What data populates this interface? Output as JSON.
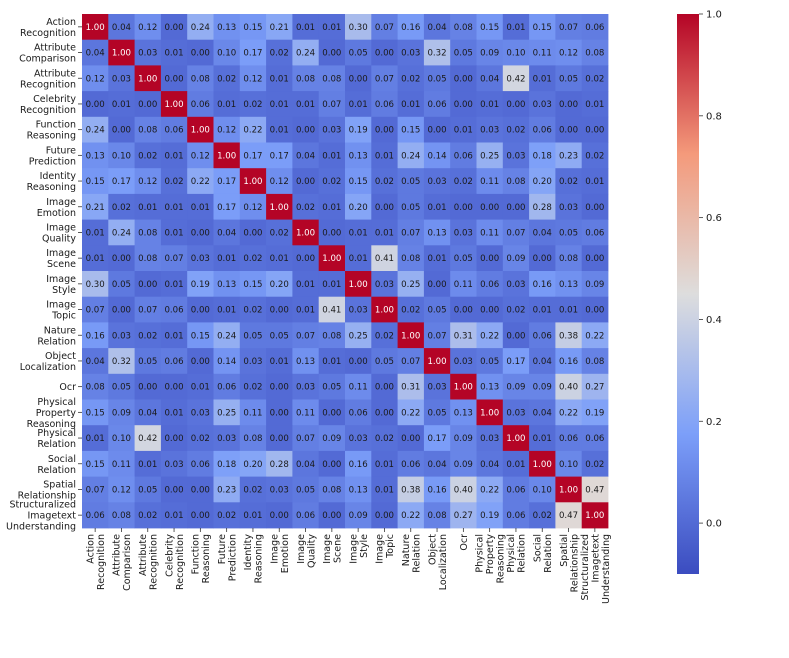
{
  "chart_data": {
    "type": "heatmap",
    "title": "",
    "xlabel": "",
    "ylabel": "",
    "categories": [
      "Action Recognition",
      "Attribute Comparison",
      "Attribute Recognition",
      "Celebrity Recognition",
      "Function Reasoning",
      "Future Prediction",
      "Identity Reasoning",
      "Image Emotion",
      "Image Quality",
      "Image Scene",
      "Image Style",
      "Image Topic",
      "Nature Relation",
      "Object Localization",
      "Ocr",
      "Physical Property Reasoning",
      "Physical Relation",
      "Social Relation",
      "Spatial Relationship",
      "Structuralized Imagetext Understanding"
    ],
    "category_lines": [
      [
        "Action",
        "Recognition"
      ],
      [
        "Attribute",
        "Comparison"
      ],
      [
        "Attribute",
        "Recognition"
      ],
      [
        "Celebrity",
        "Recognition"
      ],
      [
        "Function",
        "Reasoning"
      ],
      [
        "Future",
        "Prediction"
      ],
      [
        "Identity",
        "Reasoning"
      ],
      [
        "Image",
        "Emotion"
      ],
      [
        "Image",
        "Quality"
      ],
      [
        "Image",
        "Scene"
      ],
      [
        "Image",
        "Style"
      ],
      [
        "Image",
        "Topic"
      ],
      [
        "Nature",
        "Relation"
      ],
      [
        "Object",
        "Localization"
      ],
      [
        "Ocr"
      ],
      [
        "Physical",
        "Property",
        "Reasoning"
      ],
      [
        "Physical",
        "Relation"
      ],
      [
        "Social",
        "Relation"
      ],
      [
        "Spatial",
        "Relationship"
      ],
      [
        "Structuralized",
        "Imagetext",
        "Understanding"
      ]
    ],
    "matrix": [
      [
        1.0,
        0.04,
        0.12,
        0.0,
        0.24,
        0.13,
        0.15,
        0.21,
        0.01,
        0.01,
        0.3,
        0.07,
        0.16,
        0.04,
        0.08,
        0.15,
        0.01,
        0.15,
        0.07,
        0.06
      ],
      [
        0.04,
        1.0,
        0.03,
        0.01,
        0.0,
        0.1,
        0.17,
        0.02,
        0.24,
        0.0,
        0.05,
        0.0,
        0.03,
        0.32,
        0.05,
        0.09,
        0.1,
        0.11,
        0.12,
        0.08
      ],
      [
        0.12,
        0.03,
        1.0,
        0.0,
        0.08,
        0.02,
        0.12,
        0.01,
        0.08,
        0.08,
        0.0,
        0.07,
        0.02,
        0.05,
        0.0,
        0.04,
        0.42,
        0.01,
        0.05,
        0.02
      ],
      [
        0.0,
        0.01,
        0.0,
        1.0,
        0.06,
        0.01,
        0.02,
        0.01,
        0.01,
        0.07,
        0.01,
        0.06,
        0.01,
        0.06,
        0.0,
        0.01,
        0.0,
        0.03,
        0.0,
        0.01
      ],
      [
        0.24,
        0.0,
        0.08,
        0.06,
        1.0,
        0.12,
        0.22,
        0.01,
        0.0,
        0.03,
        0.19,
        0.0,
        0.15,
        0.0,
        0.01,
        0.03,
        0.02,
        0.06,
        0.0,
        0.0
      ],
      [
        0.13,
        0.1,
        0.02,
        0.01,
        0.12,
        1.0,
        0.17,
        0.17,
        0.04,
        0.01,
        0.13,
        0.01,
        0.24,
        0.14,
        0.06,
        0.25,
        0.03,
        0.18,
        0.23,
        0.02
      ],
      [
        0.15,
        0.17,
        0.12,
        0.02,
        0.22,
        0.17,
        1.0,
        0.12,
        0.0,
        0.02,
        0.15,
        0.02,
        0.05,
        0.03,
        0.02,
        0.11,
        0.08,
        0.2,
        0.02,
        0.01
      ],
      [
        0.21,
        0.02,
        0.01,
        0.01,
        0.01,
        0.17,
        0.12,
        1.0,
        0.02,
        0.01,
        0.2,
        0.0,
        0.05,
        0.01,
        0.0,
        0.0,
        0.0,
        0.28,
        0.03,
        0.0
      ],
      [
        0.01,
        0.24,
        0.08,
        0.01,
        0.0,
        0.04,
        0.0,
        0.02,
        1.0,
        0.0,
        0.01,
        0.01,
        0.07,
        0.13,
        0.03,
        0.11,
        0.07,
        0.04,
        0.05,
        0.06
      ],
      [
        0.01,
        0.0,
        0.08,
        0.07,
        0.03,
        0.01,
        0.02,
        0.01,
        0.0,
        1.0,
        0.01,
        0.41,
        0.08,
        0.01,
        0.05,
        0.0,
        0.09,
        0.0,
        0.08,
        0.0
      ],
      [
        0.3,
        0.05,
        0.0,
        0.01,
        0.19,
        0.13,
        0.15,
        0.2,
        0.01,
        0.01,
        1.0,
        0.03,
        0.25,
        0.0,
        0.11,
        0.06,
        0.03,
        0.16,
        0.13,
        0.09
      ],
      [
        0.07,
        0.0,
        0.07,
        0.06,
        0.0,
        0.01,
        0.02,
        0.0,
        0.01,
        0.41,
        0.03,
        1.0,
        0.02,
        0.05,
        0.0,
        0.0,
        0.02,
        0.01,
        0.01,
        0.0
      ],
      [
        0.16,
        0.03,
        0.02,
        0.01,
        0.15,
        0.24,
        0.05,
        0.05,
        0.07,
        0.08,
        0.25,
        0.02,
        1.0,
        0.07,
        0.31,
        0.22,
        0.0,
        0.06,
        0.38,
        0.22
      ],
      [
        0.04,
        0.32,
        0.05,
        0.06,
        0.0,
        0.14,
        0.03,
        0.01,
        0.13,
        0.01,
        0.0,
        0.05,
        0.07,
        1.0,
        0.03,
        0.05,
        0.17,
        0.04,
        0.16,
        0.08
      ],
      [
        0.08,
        0.05,
        0.0,
        0.0,
        0.01,
        0.06,
        0.02,
        0.0,
        0.03,
        0.05,
        0.11,
        0.0,
        0.31,
        0.03,
        1.0,
        0.13,
        0.09,
        0.09,
        0.4,
        0.27
      ],
      [
        0.15,
        0.09,
        0.04,
        0.01,
        0.03,
        0.25,
        0.11,
        0.0,
        0.11,
        0.0,
        0.06,
        0.0,
        0.22,
        0.05,
        0.13,
        1.0,
        0.03,
        0.04,
        0.22,
        0.19
      ],
      [
        0.01,
        0.1,
        0.42,
        0.0,
        0.02,
        0.03,
        0.08,
        0.0,
        0.07,
        0.09,
        0.03,
        0.02,
        0.0,
        0.17,
        0.09,
        0.03,
        1.0,
        0.01,
        0.06,
        0.06
      ],
      [
        0.15,
        0.11,
        0.01,
        0.03,
        0.06,
        0.18,
        0.2,
        0.28,
        0.04,
        0.0,
        0.16,
        0.01,
        0.06,
        0.04,
        0.09,
        0.04,
        0.01,
        1.0,
        0.1,
        0.02
      ],
      [
        0.07,
        0.12,
        0.05,
        0.0,
        0.0,
        0.23,
        0.02,
        0.03,
        0.05,
        0.08,
        0.13,
        0.01,
        0.38,
        0.16,
        0.4,
        0.22,
        0.06,
        0.1,
        1.0,
        0.47
      ],
      [
        0.06,
        0.08,
        0.02,
        0.01,
        0.0,
        0.02,
        0.01,
        0.0,
        0.06,
        0.0,
        0.09,
        0.0,
        0.22,
        0.08,
        0.27,
        0.19,
        0.06,
        0.02,
        0.47,
        1.0
      ]
    ],
    "colormap": "coolwarm",
    "vmin": -0.1,
    "vmax": 1.0,
    "colorbar_ticks": [
      0.0,
      0.2,
      0.4,
      0.6,
      0.8,
      1.0
    ],
    "colorbar_tick_labels": [
      "0.0",
      "0.2",
      "0.4",
      "0.6",
      "0.8",
      "1.0"
    ],
    "value_format": "2 decimals",
    "grid": false,
    "legend": "colorbar right"
  }
}
